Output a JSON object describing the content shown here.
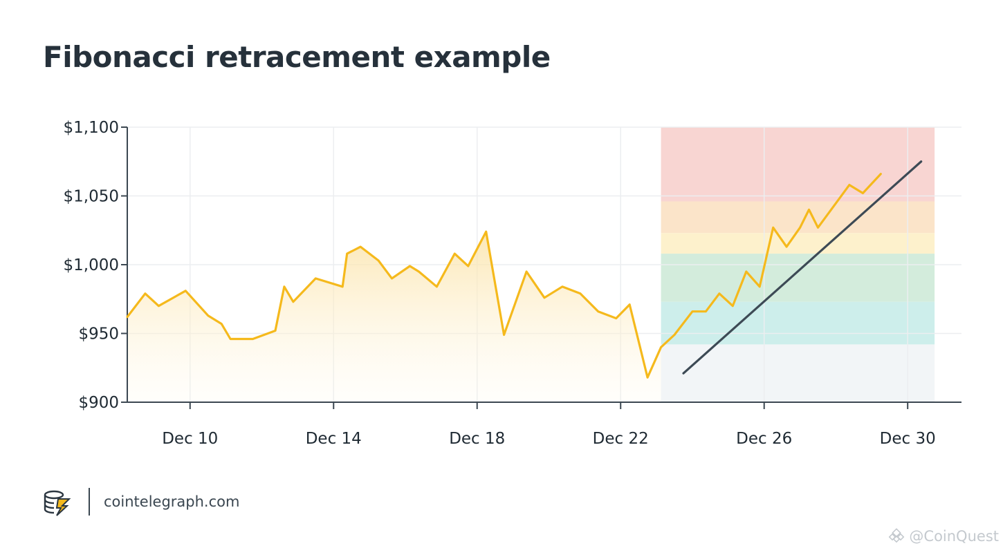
{
  "chart_data": {
    "type": "line",
    "title": "Fibonacci retracement example",
    "xlabel": "",
    "ylabel": "",
    "ylim": [
      900,
      1100
    ],
    "x_tick_labels": [
      "Dec 10",
      "Dec 14",
      "Dec 18",
      "Dec 22",
      "Dec 26",
      "Dec 30"
    ],
    "y_tick_labels": [
      "$1,100",
      "$1,050",
      "$1,000",
      "$950",
      "$900"
    ],
    "y_tick_values": [
      1100,
      1050,
      1000,
      950,
      900
    ],
    "x_tick_dates": [
      "2023-12-10",
      "2023-12-14",
      "2023-12-18",
      "2023-12-22",
      "2023-12-26",
      "2023-12-30"
    ],
    "xlim": [
      "2023-12-08T06:00",
      "2023-12-31T12:00"
    ],
    "grid": true,
    "series": [
      {
        "color": "#f5b91c",
        "points": [
          [
            "2023-12-08T06:00",
            962
          ],
          [
            "2023-12-08T18:00",
            979
          ],
          [
            "2023-12-09T03:00",
            970
          ],
          [
            "2023-12-09T21:00",
            981
          ],
          [
            "2023-12-10T12:00",
            963
          ],
          [
            "2023-12-10T21:00",
            957
          ],
          [
            "2023-12-11T03:00",
            946
          ],
          [
            "2023-12-11T18:00",
            946
          ],
          [
            "2023-12-12T09:00",
            952
          ],
          [
            "2023-12-12T15:00",
            984
          ],
          [
            "2023-12-12T21:00",
            973
          ],
          [
            "2023-12-13T12:00",
            990
          ],
          [
            "2023-12-14T06:00",
            984
          ],
          [
            "2023-12-14T09:00",
            1008
          ],
          [
            "2023-12-14T18:00",
            1013
          ],
          [
            "2023-12-15T06:00",
            1003
          ],
          [
            "2023-12-15T15:00",
            990
          ],
          [
            "2023-12-16T03:00",
            999
          ],
          [
            "2023-12-16T09:00",
            995
          ],
          [
            "2023-12-16T21:00",
            984
          ],
          [
            "2023-12-17T09:00",
            1008
          ],
          [
            "2023-12-17T18:00",
            999
          ],
          [
            "2023-12-18T06:00",
            1024
          ],
          [
            "2023-12-18T18:00",
            949
          ],
          [
            "2023-12-19T09:00",
            995
          ],
          [
            "2023-12-19T21:00",
            976
          ],
          [
            "2023-12-20T09:00",
            984
          ],
          [
            "2023-12-20T21:00",
            979
          ],
          [
            "2023-12-21T09:00",
            966
          ],
          [
            "2023-12-21T21:00",
            961
          ],
          [
            "2023-12-22T06:00",
            971
          ],
          [
            "2023-12-22T18:00",
            918
          ],
          [
            "2023-12-23T03:00",
            940
          ],
          [
            "2023-12-23T12:00",
            949
          ],
          [
            "2023-12-24T00:00",
            966
          ],
          [
            "2023-12-24T09:00",
            966
          ],
          [
            "2023-12-24T18:00",
            979
          ],
          [
            "2023-12-25T03:00",
            970
          ],
          [
            "2023-12-25T12:00",
            995
          ],
          [
            "2023-12-25T21:00",
            984
          ],
          [
            "2023-12-26T06:00",
            1027
          ],
          [
            "2023-12-26T15:00",
            1013
          ],
          [
            "2023-12-27T00:00",
            1027
          ],
          [
            "2023-12-27T06:00",
            1040
          ],
          [
            "2023-12-27T12:00",
            1027
          ],
          [
            "2023-12-28T09:00",
            1058
          ],
          [
            "2023-12-28T18:00",
            1052
          ],
          [
            "2023-12-29T06:00",
            1066
          ]
        ]
      }
    ],
    "trendline": {
      "color": "#3d4a55",
      "points": [
        [
          "2023-12-23T18:00",
          921
        ],
        [
          "2023-12-30T09:00",
          1075
        ]
      ]
    },
    "fib_zone": {
      "x_range": [
        "2023-12-23T03:00",
        "2023-12-30T18:00"
      ],
      "bands": [
        {
          "y": [
            1046,
            1100
          ],
          "color": "#f8d5d2"
        },
        {
          "y": [
            1023,
            1046
          ],
          "color": "#fbe4c9"
        },
        {
          "y": [
            1008,
            1023
          ],
          "color": "#fdf1cc"
        },
        {
          "y": [
            973,
            1008
          ],
          "color": "#d3ecdc"
        },
        {
          "y": [
            942,
            973
          ],
          "color": "#cdeeeb"
        },
        {
          "y": [
            900,
            942
          ],
          "color": "#f2f5f7"
        }
      ]
    }
  },
  "footer": {
    "site": "cointelegraph.com",
    "logo_icon": "cointelegraph-logo-icon"
  },
  "watermark": {
    "text": "@CoinQuest",
    "icon": "binance-square-icon"
  }
}
